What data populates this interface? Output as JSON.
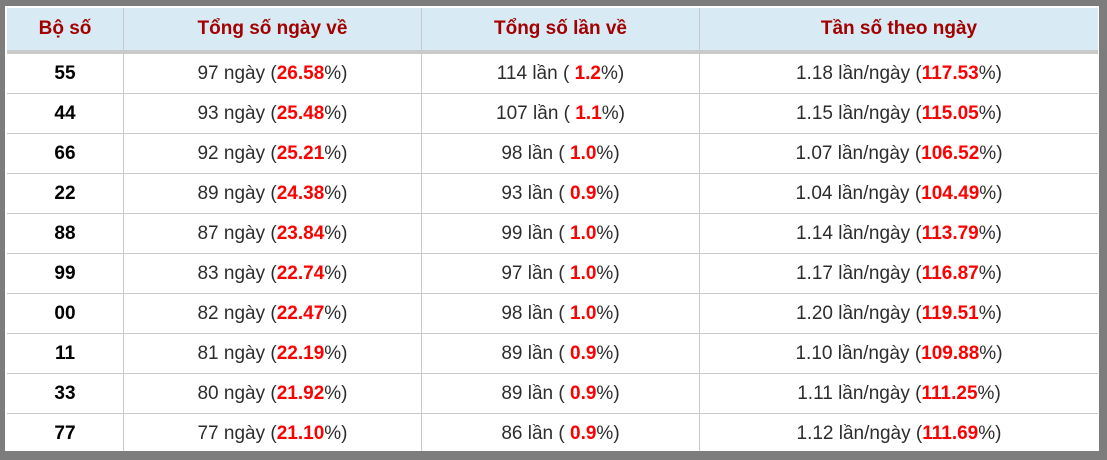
{
  "colors": {
    "frame_border": "#7d7d7d",
    "header_background": "#d8eaf4",
    "header_text": "#a30000",
    "header_underline": "#cacaca",
    "grid_line": "#c9c9c9",
    "highlight_percent": "#ff0000",
    "body_text": "#2d2d2d",
    "pair_text": "#000000",
    "row_background": "#ffffff"
  },
  "table": {
    "headers": [
      "Bộ số",
      "Tổng số ngày về",
      "Tổng số lần về",
      "Tần số theo ngày"
    ],
    "rows": [
      {
        "pair": "55",
        "days": {
          "pre": "97 ngày (",
          "pct": "26.58",
          "post": "%)"
        },
        "times": {
          "pre": "114 lần ( ",
          "pct": "1.2",
          "post": "%)"
        },
        "freq": {
          "pre": "1.18 lần/ngày (",
          "pct": "117.53",
          "post": "%)"
        }
      },
      {
        "pair": "44",
        "days": {
          "pre": "93 ngày (",
          "pct": "25.48",
          "post": "%)"
        },
        "times": {
          "pre": "107 lần ( ",
          "pct": "1.1",
          "post": "%)"
        },
        "freq": {
          "pre": "1.15 lần/ngày (",
          "pct": "115.05",
          "post": "%)"
        }
      },
      {
        "pair": "66",
        "days": {
          "pre": "92 ngày (",
          "pct": "25.21",
          "post": "%)"
        },
        "times": {
          "pre": "98 lần ( ",
          "pct": "1.0",
          "post": "%)"
        },
        "freq": {
          "pre": "1.07 lần/ngày (",
          "pct": "106.52",
          "post": "%)"
        }
      },
      {
        "pair": "22",
        "days": {
          "pre": "89 ngày (",
          "pct": "24.38",
          "post": "%)"
        },
        "times": {
          "pre": "93 lần ( ",
          "pct": "0.9",
          "post": "%)"
        },
        "freq": {
          "pre": "1.04 lần/ngày (",
          "pct": "104.49",
          "post": "%)"
        }
      },
      {
        "pair": "88",
        "days": {
          "pre": "87 ngày (",
          "pct": "23.84",
          "post": "%)"
        },
        "times": {
          "pre": "99 lần ( ",
          "pct": "1.0",
          "post": "%)"
        },
        "freq": {
          "pre": "1.14 lần/ngày (",
          "pct": "113.79",
          "post": "%)"
        }
      },
      {
        "pair": "99",
        "days": {
          "pre": "83 ngày (",
          "pct": "22.74",
          "post": "%)"
        },
        "times": {
          "pre": "97 lần ( ",
          "pct": "1.0",
          "post": "%)"
        },
        "freq": {
          "pre": "1.17 lần/ngày (",
          "pct": "116.87",
          "post": "%)"
        }
      },
      {
        "pair": "00",
        "days": {
          "pre": "82 ngày (",
          "pct": "22.47",
          "post": "%)"
        },
        "times": {
          "pre": "98 lần ( ",
          "pct": "1.0",
          "post": "%)"
        },
        "freq": {
          "pre": "1.20 lần/ngày (",
          "pct": "119.51",
          "post": "%)"
        }
      },
      {
        "pair": "11",
        "days": {
          "pre": "81 ngày (",
          "pct": "22.19",
          "post": "%)"
        },
        "times": {
          "pre": "89 lần ( ",
          "pct": "0.9",
          "post": "%)"
        },
        "freq": {
          "pre": "1.10 lần/ngày (",
          "pct": "109.88",
          "post": "%)"
        }
      },
      {
        "pair": "33",
        "days": {
          "pre": "80 ngày (",
          "pct": "21.92",
          "post": "%)"
        },
        "times": {
          "pre": "89 lần ( ",
          "pct": "0.9",
          "post": "%)"
        },
        "freq": {
          "pre": "1.11 lần/ngày (",
          "pct": "111.25",
          "post": "%)"
        }
      },
      {
        "pair": "77",
        "days": {
          "pre": "77 ngày (",
          "pct": "21.10",
          "post": "%)"
        },
        "times": {
          "pre": "86 lần ( ",
          "pct": "0.9",
          "post": "%)"
        },
        "freq": {
          "pre": "1.12 lần/ngày (",
          "pct": "111.69",
          "post": "%)"
        }
      }
    ]
  },
  "chart_data": {
    "type": "table",
    "columns": [
      "Bộ số",
      "Tổng số ngày về",
      "Tổng số lần về",
      "Tần số theo ngày"
    ],
    "rows": [
      [
        "55",
        "97 ngày (26.58%)",
        "114 lần ( 1.2%)",
        "1.18 lần/ngày (117.53%)"
      ],
      [
        "44",
        "93 ngày (25.48%)",
        "107 lần ( 1.1%)",
        "1.15 lần/ngày (115.05%)"
      ],
      [
        "66",
        "92 ngày (25.21%)",
        "98 lần ( 1.0%)",
        "1.07 lần/ngày (106.52%)"
      ],
      [
        "22",
        "89 ngày (24.38%)",
        "93 lần ( 0.9%)",
        "1.04 lần/ngày (104.49%)"
      ],
      [
        "88",
        "87 ngày (23.84%)",
        "99 lần ( 1.0%)",
        "1.14 lần/ngày (113.79%)"
      ],
      [
        "99",
        "83 ngày (22.74%)",
        "97 lần ( 1.0%)",
        "1.17 lần/ngày (116.87%)"
      ],
      [
        "00",
        "82 ngày (22.47%)",
        "98 lần ( 1.0%)",
        "1.20 lần/ngày (119.51%)"
      ],
      [
        "11",
        "81 ngày (22.19%)",
        "89 lần ( 0.9%)",
        "1.10 lần/ngày (109.88%)"
      ],
      [
        "33",
        "80 ngày (21.92%)",
        "89 lần ( 0.9%)",
        "1.11 lần/ngày (111.25%)"
      ],
      [
        "77",
        "77 ngày (21.10%)",
        "86 lần ( 0.9%)",
        "1.12 lần/ngày (111.69%)"
      ]
    ]
  }
}
